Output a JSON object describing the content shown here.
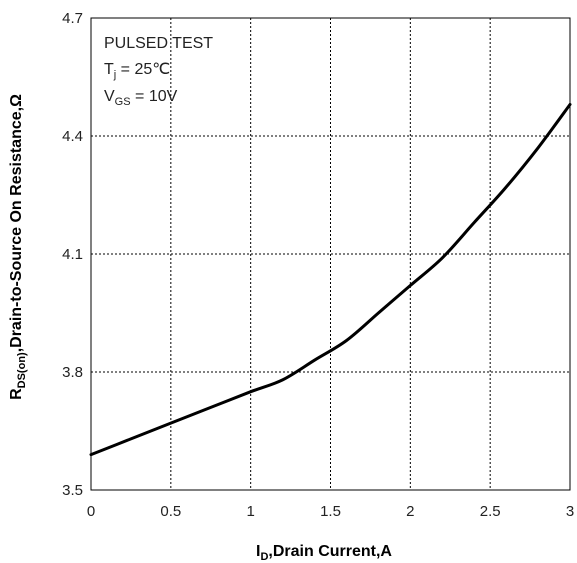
{
  "chart_data": {
    "type": "line",
    "xlabel_main": "I",
    "xlabel_sub": "D",
    "xlabel_rest": ",Drain Current,A",
    "ylabel_main": "R",
    "ylabel_sub": "DS(on)",
    "ylabel_rest": ",Drain-to-Source On Resistance,Ω",
    "xlim": [
      0,
      3
    ],
    "ylim": [
      3.5,
      4.7
    ],
    "x_ticks": [
      "0",
      "0.5",
      "1",
      "1.5",
      "2",
      "2.5",
      "3"
    ],
    "y_ticks": [
      "3.5",
      "3.8",
      "4.1",
      "4.4",
      "4.7"
    ],
    "grid": true,
    "annotations": {
      "line1": "PULSED TEST",
      "line2_main": "T",
      "line2_sub": "j",
      "line2_rest": " = 25℃",
      "line3_main": "V",
      "line3_sub": "GS",
      "line3_rest": " = 10V"
    },
    "series": [
      {
        "x": [
          0,
          0.25,
          0.5,
          0.75,
          1.0,
          1.2,
          1.4,
          1.6,
          1.8,
          2.0,
          2.2,
          2.4,
          2.6,
          2.8,
          3.0
        ],
        "y": [
          3.59,
          3.63,
          3.67,
          3.71,
          3.75,
          3.78,
          3.83,
          3.88,
          3.95,
          4.02,
          4.09,
          4.18,
          4.27,
          4.37,
          4.48
        ]
      }
    ]
  }
}
